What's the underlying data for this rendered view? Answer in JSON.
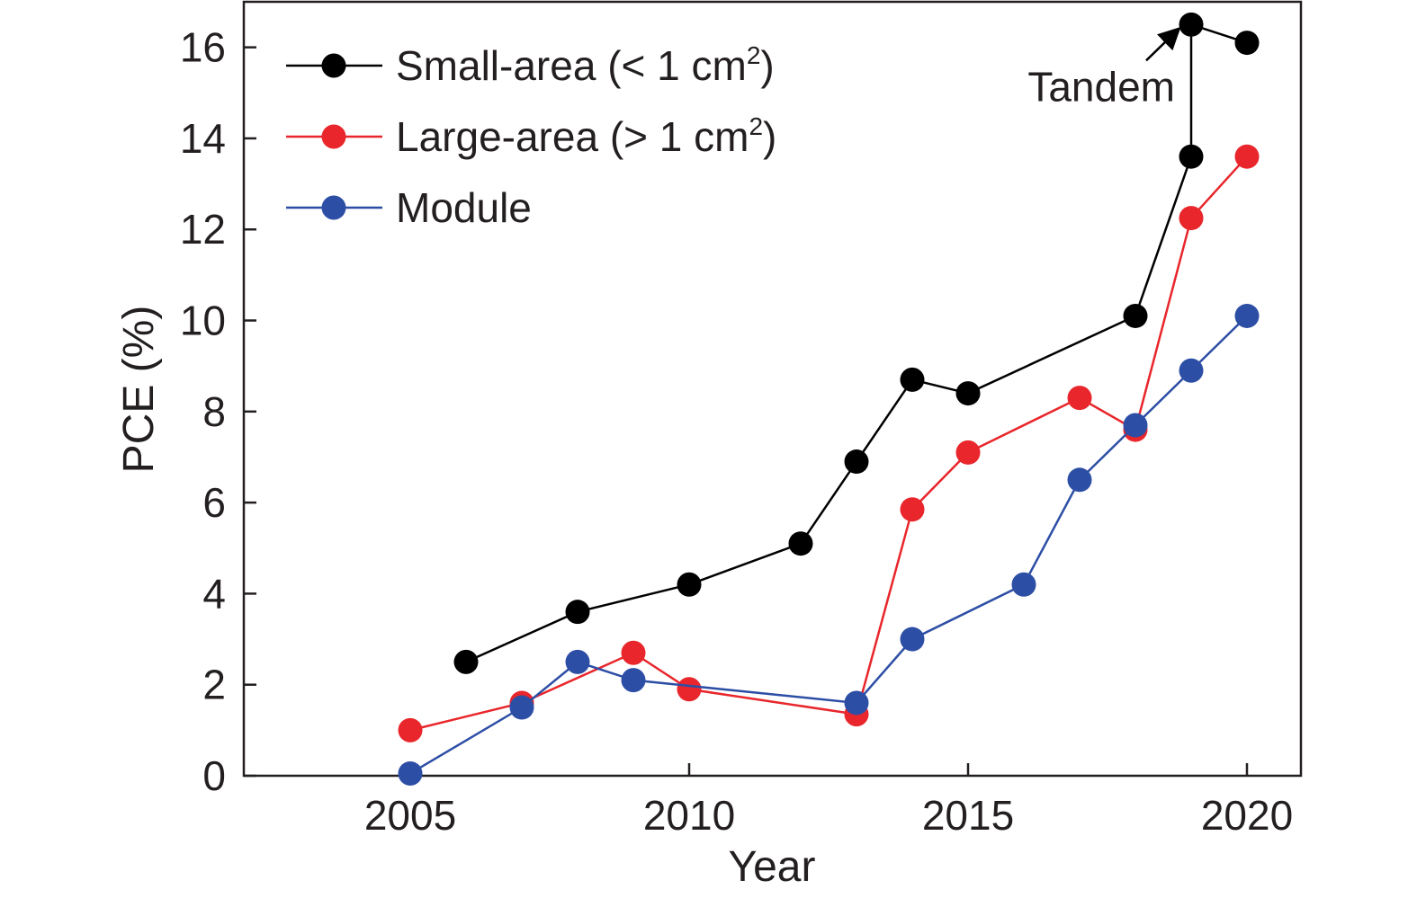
{
  "chart_data": {
    "type": "line",
    "title": "",
    "xlabel": "Year",
    "ylabel": "PCE (%)",
    "xlim": [
      2002,
      2021
    ],
    "ylim": [
      0,
      17
    ],
    "xticks": [
      2005,
      2010,
      2015,
      2020
    ],
    "yticks": [
      0,
      2,
      4,
      6,
      8,
      10,
      12,
      14,
      16
    ],
    "grid": false,
    "legend_position": "top-left",
    "series": [
      {
        "name": "Small-area (< 1 cm²)",
        "name_main": "Small-area (< 1 cm",
        "name_sup": "2",
        "name_tail": ")",
        "color": "#000000",
        "points": [
          {
            "x": 2006,
            "y": 2.5
          },
          {
            "x": 2008,
            "y": 3.6
          },
          {
            "x": 2010,
            "y": 4.2
          },
          {
            "x": 2012,
            "y": 5.1
          },
          {
            "x": 2013,
            "y": 6.9
          },
          {
            "x": 2014,
            "y": 8.7
          },
          {
            "x": 2015,
            "y": 8.4
          },
          {
            "x": 2018,
            "y": 10.1
          },
          {
            "x": 2019,
            "y": 13.6
          },
          {
            "x": 2019,
            "y": 16.5
          },
          {
            "x": 2020,
            "y": 16.1
          }
        ]
      },
      {
        "name": "Large-area (> 1 cm²)",
        "name_main": "Large-area (> 1 cm",
        "name_sup": "2",
        "name_tail": ")",
        "color": "#e8262b",
        "points": [
          {
            "x": 2005,
            "y": 1.0
          },
          {
            "x": 2007,
            "y": 1.6
          },
          {
            "x": 2009,
            "y": 2.7
          },
          {
            "x": 2010,
            "y": 1.9
          },
          {
            "x": 2013,
            "y": 1.35
          },
          {
            "x": 2014,
            "y": 5.85
          },
          {
            "x": 2015,
            "y": 7.1
          },
          {
            "x": 2017,
            "y": 8.3
          },
          {
            "x": 2018,
            "y": 7.6
          },
          {
            "x": 2019,
            "y": 12.25
          },
          {
            "x": 2020,
            "y": 13.6
          }
        ]
      },
      {
        "name": "Module",
        "name_main": "Module",
        "name_sup": "",
        "name_tail": "",
        "color": "#2d4ea5",
        "points": [
          {
            "x": 2005,
            "y": 0.05
          },
          {
            "x": 2007,
            "y": 1.5
          },
          {
            "x": 2008,
            "y": 2.5
          },
          {
            "x": 2009,
            "y": 2.1
          },
          {
            "x": 2013,
            "y": 1.6
          },
          {
            "x": 2014,
            "y": 3.0
          },
          {
            "x": 2016,
            "y": 4.2
          },
          {
            "x": 2017,
            "y": 6.5
          },
          {
            "x": 2018,
            "y": 7.7
          },
          {
            "x": 2019,
            "y": 8.9
          },
          {
            "x": 2020,
            "y": 10.1
          }
        ]
      }
    ],
    "annotations": [
      {
        "text": "Tandem",
        "target": {
          "x": 2019,
          "y": 16.5
        }
      }
    ]
  }
}
